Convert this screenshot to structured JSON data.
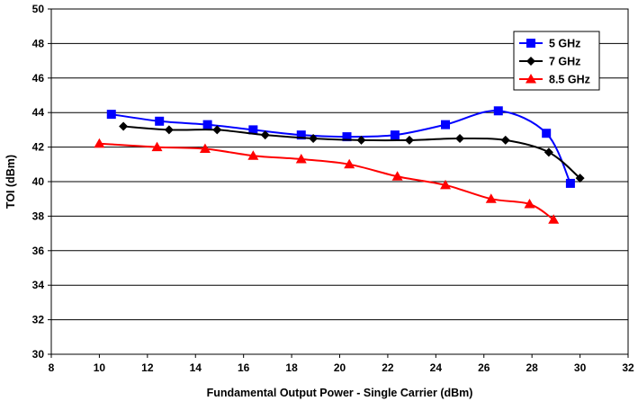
{
  "chart_data": {
    "type": "line",
    "title": "",
    "xlabel": "Fundamental Output Power - Single Carrier (dBm)",
    "ylabel": "TOI (dBm)",
    "xlim": [
      8,
      32
    ],
    "ylim": [
      30,
      50
    ],
    "x_ticks": [
      "8",
      "10",
      "12",
      "14",
      "16",
      "18",
      "20",
      "22",
      "24",
      "26",
      "28",
      "30",
      "32"
    ],
    "y_ticks": [
      "30",
      "32",
      "34",
      "36",
      "38",
      "40",
      "42",
      "44",
      "46",
      "48",
      "50"
    ],
    "grid": "horizontal",
    "legend_position": "top-right",
    "series": [
      {
        "name": "5 GHz",
        "color": "#0000ff",
        "marker": "square",
        "points": [
          [
            10.5,
            43.9
          ],
          [
            12.5,
            43.5
          ],
          [
            14.5,
            43.3
          ],
          [
            16.4,
            43.0
          ],
          [
            18.4,
            42.7
          ],
          [
            20.3,
            42.6
          ],
          [
            22.3,
            42.7
          ],
          [
            24.4,
            43.3
          ],
          [
            26.6,
            44.1
          ],
          [
            28.6,
            42.8
          ],
          [
            29.6,
            39.9
          ]
        ]
      },
      {
        "name": "7 GHz",
        "color": "#000000",
        "marker": "diamond",
        "points": [
          [
            11.0,
            43.2
          ],
          [
            12.9,
            43.0
          ],
          [
            14.9,
            43.0
          ],
          [
            16.9,
            42.7
          ],
          [
            18.9,
            42.5
          ],
          [
            20.9,
            42.4
          ],
          [
            22.9,
            42.4
          ],
          [
            25.0,
            42.5
          ],
          [
            26.9,
            42.4
          ],
          [
            28.7,
            41.7
          ],
          [
            30.0,
            40.2
          ]
        ]
      },
      {
        "name": "8.5 GHz",
        "color": "#ff0000",
        "marker": "triangle",
        "points": [
          [
            10.0,
            42.2
          ],
          [
            12.4,
            42.0
          ],
          [
            14.4,
            41.9
          ],
          [
            16.4,
            41.5
          ],
          [
            18.4,
            41.3
          ],
          [
            20.4,
            41.0
          ],
          [
            22.4,
            40.3
          ],
          [
            24.4,
            39.8
          ],
          [
            26.3,
            39.0
          ],
          [
            27.9,
            38.7
          ],
          [
            28.9,
            37.8
          ]
        ]
      }
    ]
  }
}
